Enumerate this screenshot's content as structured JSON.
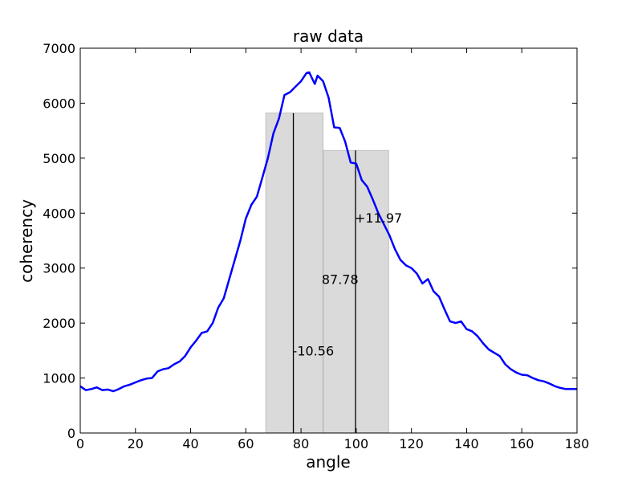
{
  "chart_data": {
    "type": "line",
    "title": "raw data",
    "xlabel": "angle",
    "ylabel": "coherency",
    "xlim": [
      0,
      180
    ],
    "ylim": [
      0,
      7000
    ],
    "x_ticks": [
      0,
      20,
      40,
      60,
      80,
      100,
      120,
      140,
      160,
      180
    ],
    "y_ticks": [
      0,
      1000,
      2000,
      3000,
      4000,
      5000,
      6000,
      7000
    ],
    "grid": false,
    "line_color": "#0000ff",
    "band_color": "#bbbbbb",
    "series": [
      {
        "x": [
          0,
          2,
          4,
          6,
          8,
          10,
          12,
          14,
          16,
          18,
          20,
          22,
          24,
          26,
          28,
          30,
          32,
          34,
          36,
          38,
          40,
          42,
          44,
          46,
          48,
          50,
          52,
          54,
          56,
          58,
          60,
          62,
          64,
          66,
          68,
          70,
          72,
          74,
          76,
          78,
          80,
          82,
          83,
          84,
          85,
          86,
          87,
          88,
          90,
          92,
          94,
          96,
          98,
          100,
          102,
          104,
          106,
          108,
          110,
          112,
          114,
          116,
          118,
          120,
          122,
          124,
          126,
          128,
          130,
          132,
          134,
          136,
          138,
          140,
          142,
          144,
          146,
          148,
          150,
          152,
          154,
          156,
          158,
          160,
          162,
          164,
          166,
          168,
          170,
          172,
          174,
          176,
          178,
          180
        ],
        "y": [
          850,
          780,
          800,
          830,
          780,
          790,
          760,
          800,
          850,
          880,
          920,
          960,
          990,
          1000,
          1120,
          1160,
          1180,
          1250,
          1300,
          1400,
          1560,
          1680,
          1820,
          1850,
          2000,
          2280,
          2450,
          2800,
          3150,
          3500,
          3900,
          4150,
          4300,
          4650,
          5000,
          5450,
          5720,
          6150,
          6200,
          6300,
          6400,
          6550,
          6560,
          6450,
          6350,
          6500,
          6450,
          6400,
          6100,
          5560,
          5550,
          5300,
          4920,
          4900,
          4600,
          4480,
          4250,
          4000,
          3800,
          3600,
          3350,
          3150,
          3050,
          3000,
          2900,
          2720,
          2800,
          2580,
          2480,
          2250,
          2030,
          2000,
          2030,
          1890,
          1850,
          1760,
          1630,
          1520,
          1460,
          1400,
          1250,
          1160,
          1100,
          1060,
          1050,
          1000,
          960,
          940,
          900,
          850,
          820,
          800,
          800,
          800
        ]
      }
    ],
    "bands": [
      {
        "x0": 67.22,
        "x1": 88.0,
        "y": 5820
      },
      {
        "x0": 88.0,
        "x1": 111.75,
        "y": 5140
      }
    ],
    "vlines": [
      {
        "x": 77.22,
        "y": 5820
      },
      {
        "x": 99.75,
        "y": 5140
      }
    ],
    "annotations": [
      {
        "text": "-10.56",
        "x": 77.22,
        "y": 1500
      },
      {
        "text": "87.78",
        "x": 87.78,
        "y": 2800
      },
      {
        "text": "+11.97",
        "x": 99.75,
        "y": 3920
      }
    ]
  }
}
